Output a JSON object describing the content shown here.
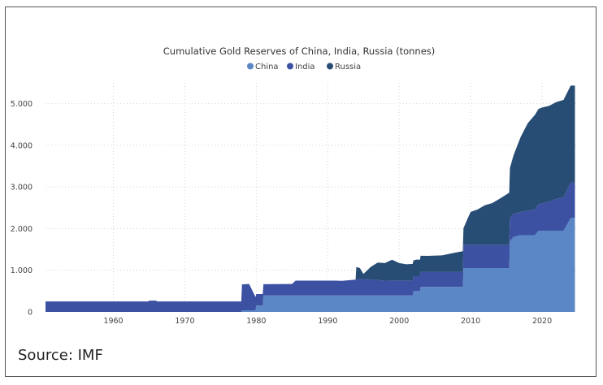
{
  "chart_data": {
    "type": "area",
    "stacked": true,
    "title": "Cumulative Gold Reserves of China, India, Russia (tonnes)",
    "xlabel": "",
    "ylabel": "",
    "xlim": [
      1950.5,
      2025
    ],
    "ylim": [
      0,
      5500
    ],
    "x_ticks": [
      1960,
      1970,
      1980,
      1990,
      2000,
      2010,
      2020
    ],
    "x_tick_labels": [
      "1960",
      "1970",
      "1980",
      "1990",
      "2000",
      "2010",
      "2020"
    ],
    "y_ticks": [
      0,
      1000,
      2000,
      3000,
      4000,
      5000
    ],
    "y_tick_labels": [
      "0",
      "1.000",
      "2.000",
      "3.000",
      "4.000",
      "5.000"
    ],
    "grid": true,
    "legend_position": "top-center",
    "series": [
      {
        "name": "China",
        "color": "#5b87c6",
        "points": [
          [
            1950.5,
            0
          ],
          [
            1977.9,
            0
          ],
          [
            1978,
            40
          ],
          [
            1979.9,
            40
          ],
          [
            1980,
            150
          ],
          [
            1980.9,
            150
          ],
          [
            1981,
            395
          ],
          [
            2001.9,
            395
          ],
          [
            2002,
            500
          ],
          [
            2002.9,
            500
          ],
          [
            2003,
            600
          ],
          [
            2008.9,
            600
          ],
          [
            2009,
            1054
          ],
          [
            2015.4,
            1054
          ],
          [
            2015.5,
            1700
          ],
          [
            2016,
            1800
          ],
          [
            2017,
            1843
          ],
          [
            2019,
            1843
          ],
          [
            2019.5,
            1950
          ],
          [
            2023,
            1950
          ],
          [
            2023.5,
            2100
          ],
          [
            2024,
            2250
          ],
          [
            2024.6,
            2264
          ]
        ]
      },
      {
        "name": "India",
        "color": "#3d51a3",
        "points": [
          [
            1950.5,
            250
          ],
          [
            1964.9,
            250
          ],
          [
            1965,
            270
          ],
          [
            1966,
            270
          ],
          [
            1966.1,
            250
          ],
          [
            1977.9,
            250
          ],
          [
            1978,
            620
          ],
          [
            1979,
            630
          ],
          [
            1980,
            280
          ],
          [
            1980.9,
            280
          ],
          [
            1981,
            270
          ],
          [
            1985,
            275
          ],
          [
            1985.5,
            355
          ],
          [
            1991,
            355
          ],
          [
            1992,
            350
          ],
          [
            1995,
            397
          ],
          [
            1998,
            357
          ],
          [
            2000,
            358
          ],
          [
            2001.9,
            358
          ],
          [
            2002,
            358
          ],
          [
            2003,
            358
          ],
          [
            2008.9,
            358
          ],
          [
            2009,
            558
          ],
          [
            2015.4,
            558
          ],
          [
            2015.5,
            558
          ],
          [
            2016,
            558
          ],
          [
            2017,
            558
          ],
          [
            2019,
            618
          ],
          [
            2020,
            657
          ],
          [
            2021,
            700
          ],
          [
            2022,
            760
          ],
          [
            2023,
            800
          ],
          [
            2024,
            854
          ],
          [
            2024.6,
            840
          ]
        ]
      },
      {
        "name": "Russia",
        "color": "#284d74",
        "points": [
          [
            1950.5,
            0
          ],
          [
            1993.9,
            0
          ],
          [
            1994,
            300
          ],
          [
            1994.5,
            270
          ],
          [
            1995,
            120
          ],
          [
            1996,
            300
          ],
          [
            1997,
            420
          ],
          [
            1998,
            420
          ],
          [
            1999,
            500
          ],
          [
            2000,
            420
          ],
          [
            2001,
            390
          ],
          [
            2001.9,
            400
          ],
          [
            2002,
            380
          ],
          [
            2002.5,
            400
          ],
          [
            2003,
            390
          ],
          [
            2004,
            387
          ],
          [
            2006,
            400
          ],
          [
            2008,
            470
          ],
          [
            2008.9,
            500
          ],
          [
            2009,
            400
          ],
          [
            2009.5,
            600
          ],
          [
            2010,
            790
          ],
          [
            2011,
            850
          ],
          [
            2012,
            950
          ],
          [
            2013,
            1000
          ],
          [
            2014,
            1100
          ],
          [
            2015.4,
            1250
          ],
          [
            2015.5,
            1200
          ],
          [
            2016,
            1400
          ],
          [
            2017,
            1800
          ],
          [
            2018,
            2100
          ],
          [
            2019,
            2270
          ],
          [
            2020,
            2300
          ],
          [
            2021,
            2300
          ],
          [
            2022,
            2330
          ],
          [
            2023,
            2340
          ],
          [
            2024,
            2330
          ],
          [
            2024.6,
            2330
          ]
        ]
      }
    ]
  },
  "source": "Source: IMF"
}
